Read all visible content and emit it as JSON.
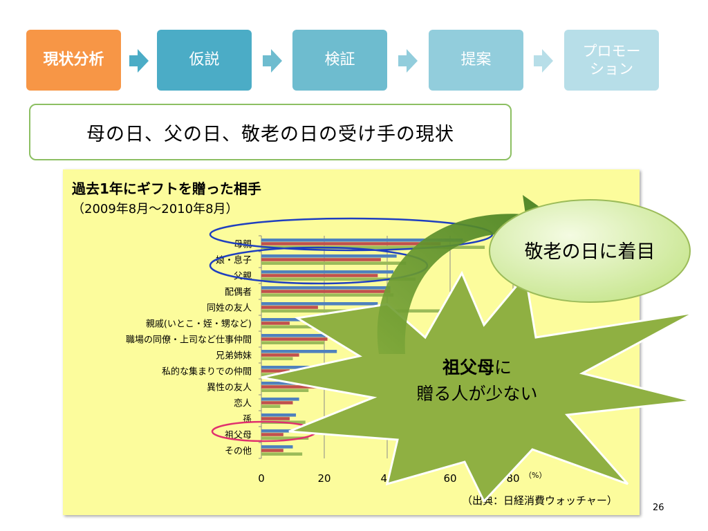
{
  "steps": [
    {
      "label": "現状分析",
      "color": "#f79646"
    },
    {
      "label": "仮説",
      "color": "#4bacc6"
    },
    {
      "label": "検証",
      "color": "#6ebccf"
    },
    {
      "label": "提案",
      "color": "#92cddc"
    },
    {
      "label": "プロモーション",
      "line1": "プロモー",
      "line2": "ション",
      "color": "#b7dee8"
    }
  ],
  "heading": "母の日、父の日、敬老の日の受け手の現状",
  "chart_title": "過去1年にギフトを贈った相手",
  "chart_subtitle": "（2009年8月～2010年8月）",
  "source_note": "（出典：日経消費ウォッチャー）",
  "page_number": "26",
  "callout_focus": "敬老の日に着目",
  "callout_star": {
    "bold": "祖父母",
    "rest1": "に",
    "line2": "贈る人が少ない"
  },
  "colors": {
    "series_blue": "#4f81bd",
    "series_red": "#c0504d",
    "series_green": "#9bbb59",
    "circle_blue": "#1f3fbf",
    "circle_pink": "#e0306e",
    "star_fill": "#8fb042",
    "bubble_fill": "#d4ee9a"
  },
  "chart_data": {
    "type": "bar",
    "orientation": "horizontal",
    "categories": [
      "母親",
      "娘・息子",
      "父親",
      "配偶者",
      "同姓の友人",
      "親戚(いとこ・姪・甥など)",
      "職場の同僚・上司など仕事仲間",
      "兄弟姉妹",
      "私的な集まりでの仲間",
      "異性の友人",
      "恋人",
      "孫",
      "祖父母",
      "その他"
    ],
    "series": [
      {
        "values": [
          64,
          43,
          42,
          41,
          37,
          30,
          24,
          24,
          19,
          16,
          12,
          11,
          11,
          10
        ]
      },
      {
        "values": [
          57,
          38,
          37,
          41,
          18,
          9,
          21,
          12,
          9,
          18,
          10,
          9,
          7,
          7
        ]
      },
      {
        "values": [
          71,
          46,
          49,
          42,
          57,
          21,
          20,
          10,
          8,
          15,
          6,
          14,
          15,
          13
        ]
      }
    ],
    "xlim": [
      0,
      80
    ],
    "xticks": [
      "0",
      "20",
      "40",
      "60",
      "80"
    ],
    "xunit": "（%）",
    "grid": true
  }
}
